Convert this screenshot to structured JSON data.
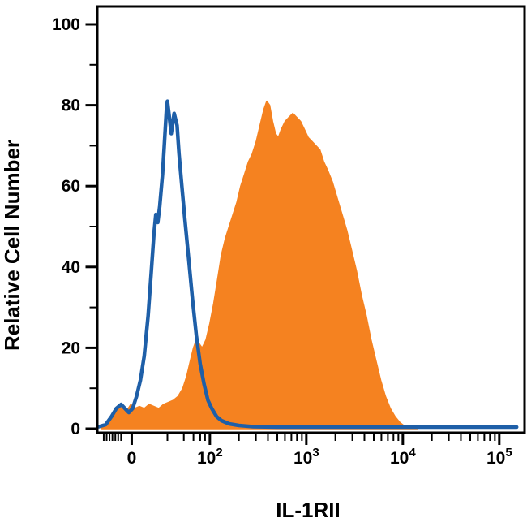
{
  "chart_data": {
    "type": "area",
    "title": "",
    "xlabel": "IL-1RII",
    "ylabel": "Relative Cell Number",
    "legend": "none",
    "grid": false,
    "x_axis": {
      "scale": "biexponential",
      "range_u": [
        0.85,
        5.22
      ],
      "ticks": [
        {
          "label": "0",
          "u": 1.19
        },
        {
          "label": "10",
          "sup": "2",
          "u": 2.0
        },
        {
          "label": "10",
          "sup": "3",
          "u": 3.0
        },
        {
          "label": "10",
          "sup": "4",
          "u": 4.0
        },
        {
          "label": "10",
          "sup": "5",
          "u": 5.0
        }
      ],
      "minor_ticks_u": [
        0.9,
        0.93,
        0.96,
        0.99,
        1.02,
        1.05,
        1.08,
        1.56,
        1.73,
        1.83,
        1.9,
        1.95,
        2.301,
        2.477,
        2.602,
        2.699,
        2.778,
        2.845,
        2.903,
        2.954,
        3.301,
        3.477,
        3.602,
        3.699,
        3.778,
        3.845,
        3.903,
        3.954,
        4.301,
        4.477,
        4.602,
        4.699,
        4.778,
        4.845,
        4.903,
        4.954
      ]
    },
    "y_axis": {
      "ticks": [
        0,
        20,
        40,
        60,
        80,
        100
      ],
      "minor_ticks": [
        10,
        30,
        50,
        70,
        90
      ],
      "range": [
        0,
        104
      ]
    },
    "series": [
      {
        "name": "orange-filled-histogram",
        "style": "area",
        "color": "#F58220",
        "peak_value": 81,
        "points": [
          [
            0.88,
            0.3
          ],
          [
            0.95,
            2
          ],
          [
            1.0,
            4
          ],
          [
            1.05,
            5.5
          ],
          [
            1.1,
            5
          ],
          [
            1.14,
            4.5
          ],
          [
            1.18,
            6
          ],
          [
            1.22,
            5
          ],
          [
            1.27,
            5.5
          ],
          [
            1.32,
            5
          ],
          [
            1.37,
            6
          ],
          [
            1.42,
            5.5
          ],
          [
            1.47,
            5
          ],
          [
            1.52,
            6
          ],
          [
            1.57,
            6.5
          ],
          [
            1.62,
            7
          ],
          [
            1.67,
            8
          ],
          [
            1.72,
            10
          ],
          [
            1.76,
            13
          ],
          [
            1.8,
            17
          ],
          [
            1.83,
            20
          ],
          [
            1.86,
            22
          ],
          [
            1.89,
            21
          ],
          [
            1.92,
            20
          ],
          [
            1.96,
            22
          ],
          [
            2.0,
            26
          ],
          [
            2.04,
            31
          ],
          [
            2.08,
            37
          ],
          [
            2.12,
            43
          ],
          [
            2.16,
            47
          ],
          [
            2.2,
            50
          ],
          [
            2.24,
            53
          ],
          [
            2.28,
            56
          ],
          [
            2.32,
            60
          ],
          [
            2.36,
            63
          ],
          [
            2.4,
            66
          ],
          [
            2.44,
            68
          ],
          [
            2.48,
            71
          ],
          [
            2.52,
            75
          ],
          [
            2.56,
            79
          ],
          [
            2.59,
            81
          ],
          [
            2.62,
            80
          ],
          [
            2.65,
            76
          ],
          [
            2.68,
            73
          ],
          [
            2.71,
            72
          ],
          [
            2.74,
            74
          ],
          [
            2.78,
            76
          ],
          [
            2.82,
            77
          ],
          [
            2.86,
            78
          ],
          [
            2.9,
            77
          ],
          [
            2.94,
            76
          ],
          [
            2.98,
            74
          ],
          [
            3.02,
            72
          ],
          [
            3.06,
            71
          ],
          [
            3.1,
            70
          ],
          [
            3.14,
            69
          ],
          [
            3.18,
            66
          ],
          [
            3.22,
            64
          ],
          [
            3.27,
            61
          ],
          [
            3.32,
            57
          ],
          [
            3.37,
            53
          ],
          [
            3.42,
            49
          ],
          [
            3.47,
            44
          ],
          [
            3.52,
            39
          ],
          [
            3.57,
            33
          ],
          [
            3.62,
            28
          ],
          [
            3.67,
            22
          ],
          [
            3.72,
            17
          ],
          [
            3.77,
            12
          ],
          [
            3.82,
            8
          ],
          [
            3.87,
            5
          ],
          [
            3.92,
            3
          ],
          [
            3.97,
            1.5
          ],
          [
            4.02,
            0.6
          ],
          [
            4.08,
            0.2
          ],
          [
            4.15,
            0
          ]
        ]
      },
      {
        "name": "blue-open-histogram",
        "style": "line",
        "color": "#1E5FA8",
        "peak_value": 81,
        "points": [
          [
            0.85,
            0.5
          ],
          [
            0.92,
            1
          ],
          [
            0.98,
            3
          ],
          [
            1.03,
            5
          ],
          [
            1.08,
            6
          ],
          [
            1.12,
            5
          ],
          [
            1.16,
            4
          ],
          [
            1.2,
            5
          ],
          [
            1.24,
            8
          ],
          [
            1.28,
            12
          ],
          [
            1.32,
            18
          ],
          [
            1.36,
            28
          ],
          [
            1.39,
            38
          ],
          [
            1.42,
            48
          ],
          [
            1.44,
            53
          ],
          [
            1.46,
            51
          ],
          [
            1.48,
            55
          ],
          [
            1.51,
            63
          ],
          [
            1.53,
            71
          ],
          [
            1.55,
            79
          ],
          [
            1.56,
            81
          ],
          [
            1.58,
            77
          ],
          [
            1.6,
            73
          ],
          [
            1.63,
            78
          ],
          [
            1.66,
            75
          ],
          [
            1.68,
            68
          ],
          [
            1.71,
            60
          ],
          [
            1.74,
            52
          ],
          [
            1.78,
            42
          ],
          [
            1.82,
            32
          ],
          [
            1.86,
            23
          ],
          [
            1.9,
            16
          ],
          [
            1.94,
            11
          ],
          [
            1.98,
            7
          ],
          [
            2.02,
            5
          ],
          [
            2.07,
            3
          ],
          [
            2.12,
            2
          ],
          [
            2.2,
            1.2
          ],
          [
            2.3,
            0.8
          ],
          [
            2.45,
            0.5
          ],
          [
            2.7,
            0.4
          ],
          [
            3.5,
            0.4
          ],
          [
            5.18,
            0.4
          ]
        ]
      }
    ],
    "colors": {
      "axis": "#000000",
      "background": "#FFFFFF"
    }
  }
}
